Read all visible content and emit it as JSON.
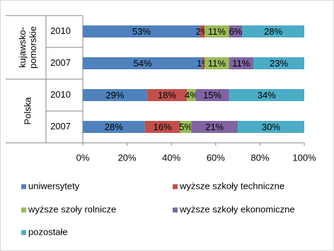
{
  "chart_data": {
    "type": "stacked-bar-horizontal",
    "categories": [
      "2010",
      "2007",
      "2010",
      "2007"
    ],
    "groups": [
      {
        "lines": [
          "kujawsko-",
          "pomorskie"
        ]
      },
      {
        "lines": [
          "Polska"
        ]
      }
    ],
    "series": [
      {
        "name": "uniwersytety",
        "color": "#4f81bd",
        "values": [
          53,
          54,
          29,
          28
        ],
        "value_labels": [
          "53%",
          "54%",
          "29%",
          "28%"
        ]
      },
      {
        "name": "wyższe szkoły techniczne",
        "color": "#c0504d",
        "values": [
          2,
          1,
          18,
          16
        ],
        "value_labels": [
          "2%",
          "1%",
          "18%",
          "16%"
        ]
      },
      {
        "name": "wyższe szoły rolnicze",
        "color": "#9bbb59",
        "values": [
          11,
          11,
          4,
          5
        ],
        "value_labels": [
          "11%",
          "11%",
          "4%",
          "5%"
        ]
      },
      {
        "name": "wyższe szkoły ekonomiczne",
        "color": "#8064a2",
        "values": [
          6,
          11,
          15,
          21
        ],
        "value_labels": [
          "6%",
          "11%",
          "15%",
          "21%"
        ]
      },
      {
        "name": "pozostałe",
        "color": "#4bacc6",
        "values": [
          28,
          23,
          34,
          30
        ],
        "value_labels": [
          "28%",
          "23%",
          "34%",
          "30%"
        ]
      }
    ],
    "xlim": [
      0,
      100
    ],
    "xticks": [
      {
        "value": 0,
        "label": "0%"
      },
      {
        "value": 20,
        "label": "20%"
      },
      {
        "value": 40,
        "label": "40%"
      },
      {
        "value": 60,
        "label": "60%"
      },
      {
        "value": 80,
        "label": "80%"
      },
      {
        "value": 100,
        "label": "100%"
      }
    ]
  }
}
